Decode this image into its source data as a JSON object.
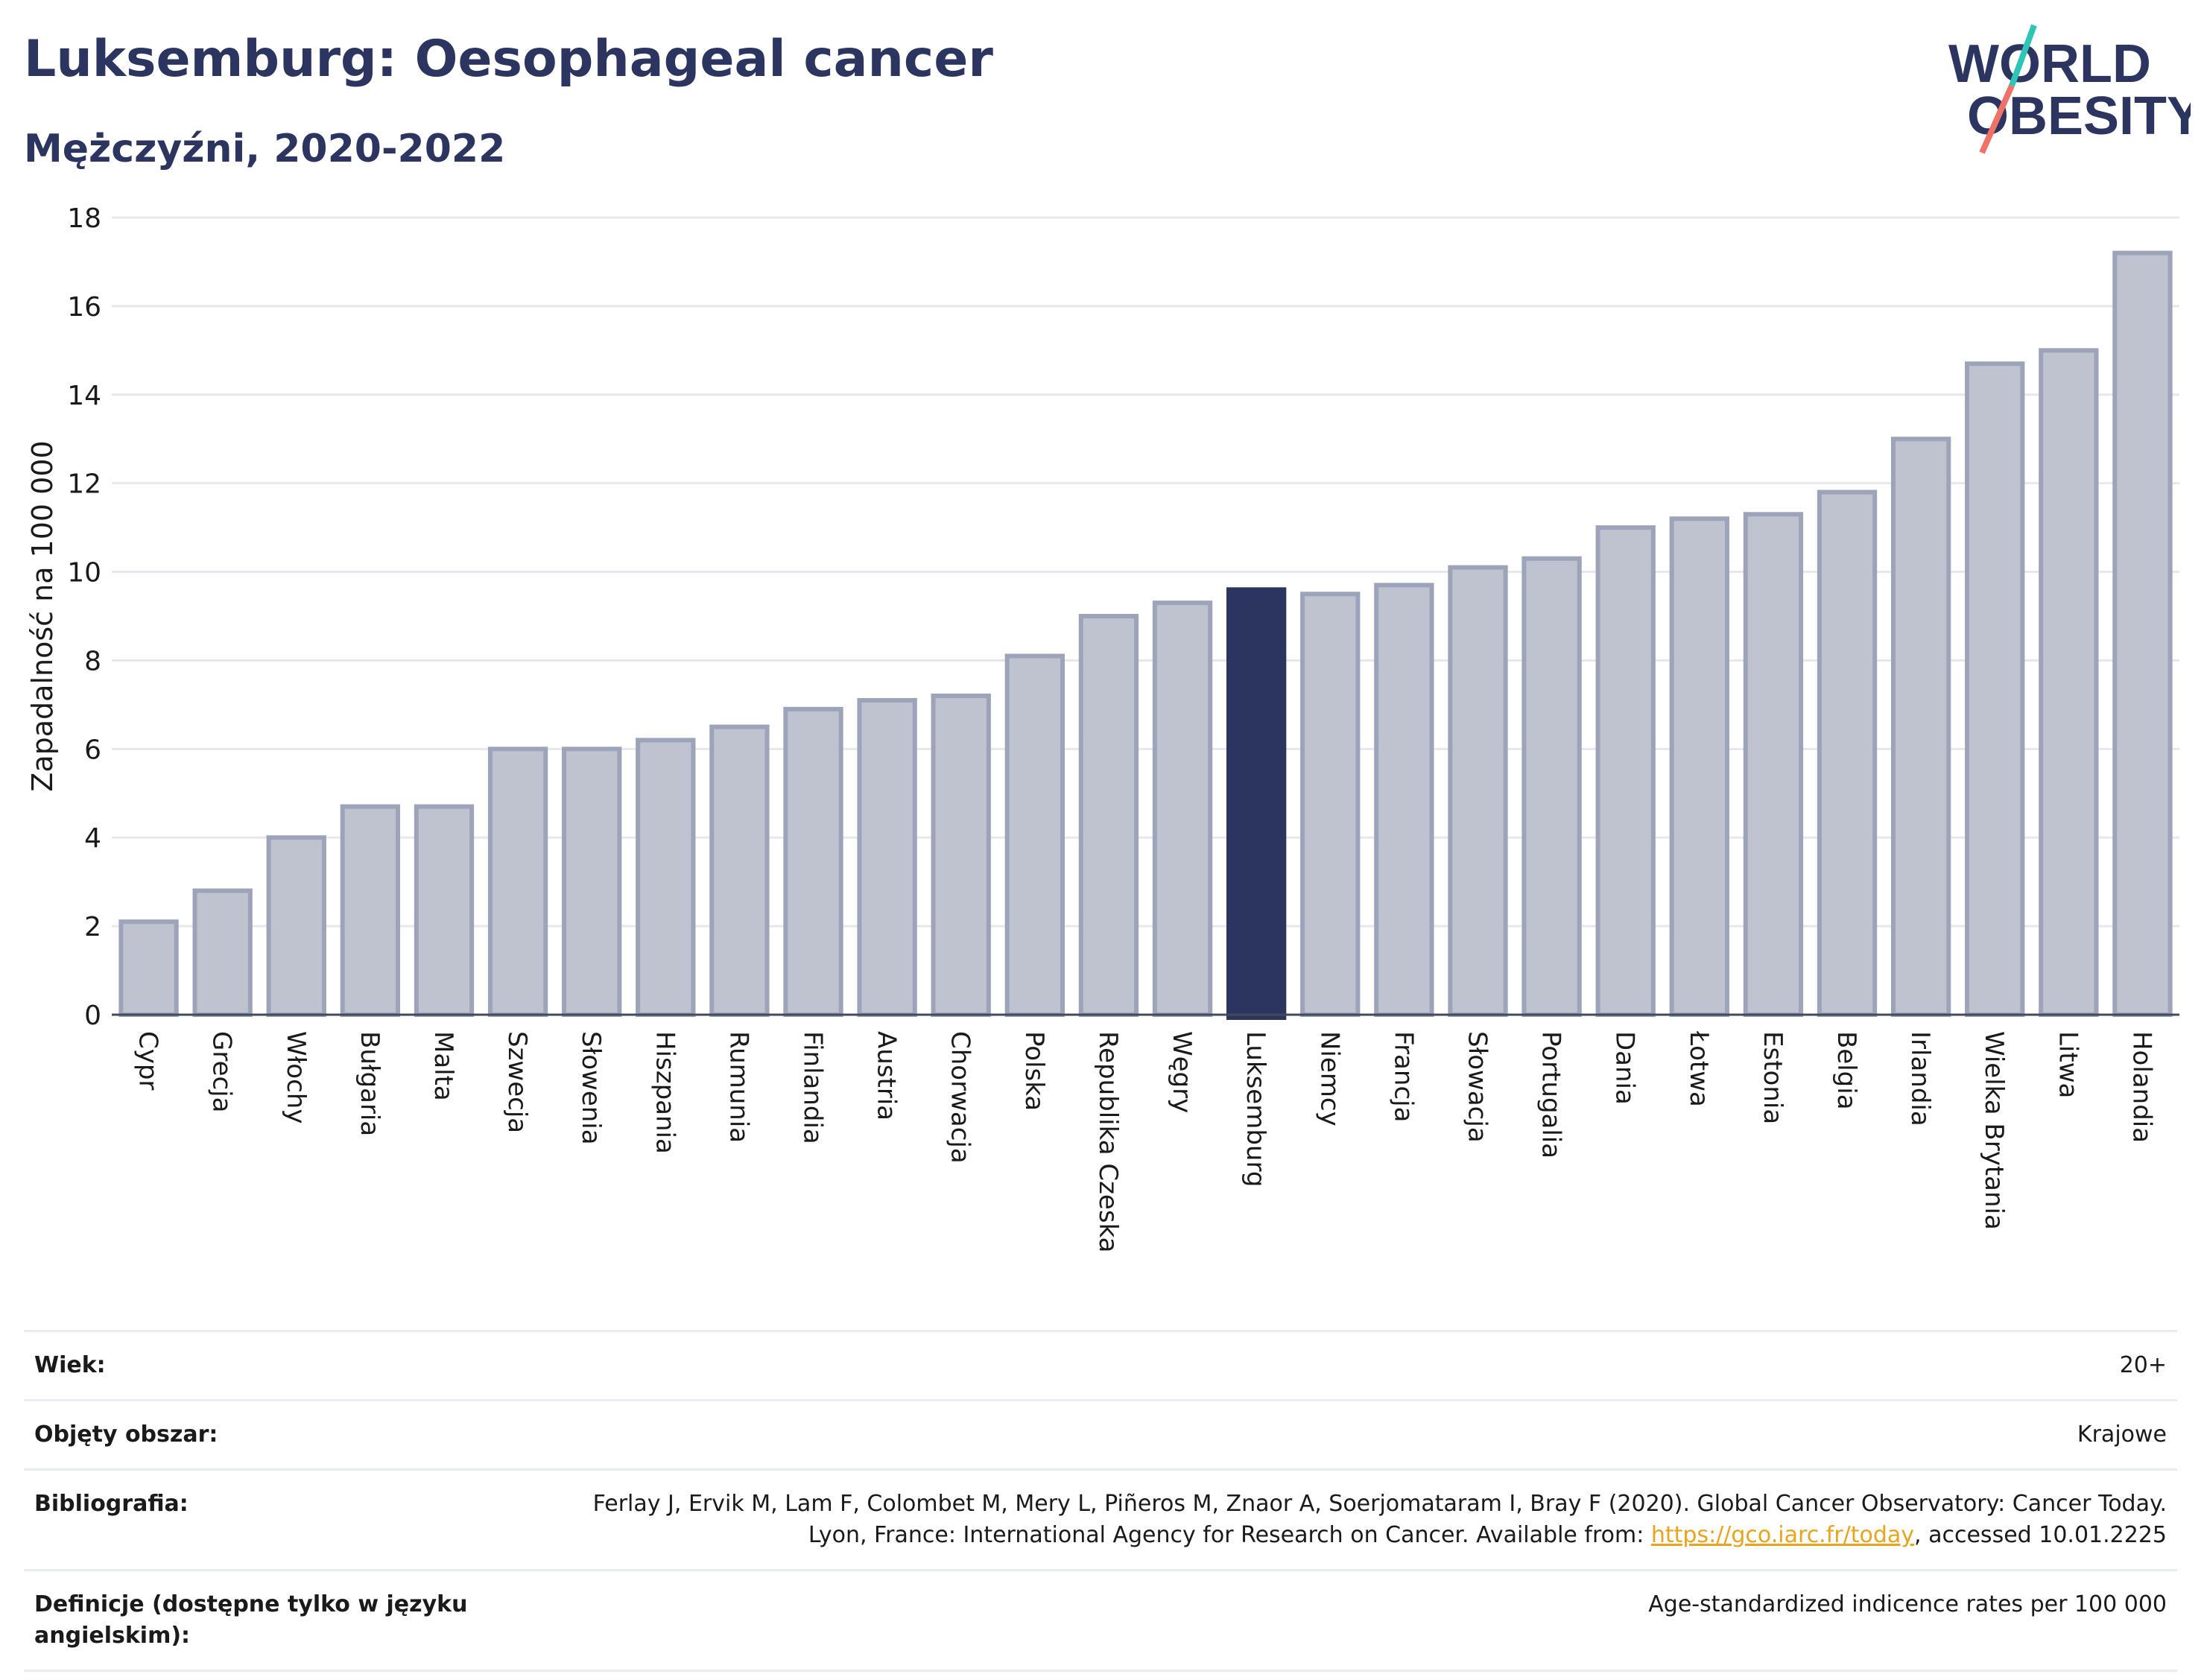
{
  "header": {
    "title": "Luksemburg: Oesophageal cancer",
    "subtitle": "Mężczyźni, 2020-2022",
    "logo_line1": "WORLD",
    "logo_line2": "OBESITY"
  },
  "colors": {
    "bar_fill": "#bfc3d0",
    "bar_stroke": "#9da3b9",
    "highlight": "#2b3560",
    "title": "#2b3560",
    "link": "#e8a41c",
    "logo_teal": "#2ec4b6",
    "logo_coral": "#f07167"
  },
  "chart_data": {
    "type": "bar",
    "ylabel": "Zapadalność na 100 000",
    "ylim": [
      0,
      18
    ],
    "yticks": [
      0,
      2,
      4,
      6,
      8,
      10,
      12,
      14,
      16,
      18
    ],
    "grid": true,
    "highlight": "Luksemburg",
    "categories": [
      "Cypr",
      "Grecja",
      "Włochy",
      "Bułgaria",
      "Malta",
      "Szwecja",
      "Słowenia",
      "Hiszpania",
      "Rumunia",
      "Finlandia",
      "Austria",
      "Chorwacja",
      "Polska",
      "Republika Czeska",
      "Węgry",
      "Luksemburg",
      "Niemcy",
      "Francja",
      "Słowacja",
      "Portugalia",
      "Dania",
      "Łotwa",
      "Estonia",
      "Belgia",
      "Irlandia",
      "Wielka Brytania",
      "Litwa",
      "Holandia"
    ],
    "values": [
      2.1,
      2.8,
      4.0,
      4.7,
      4.7,
      6.0,
      6.0,
      6.2,
      6.5,
      6.9,
      7.1,
      7.2,
      8.1,
      9.0,
      9.3,
      9.6,
      9.5,
      9.7,
      10.1,
      10.3,
      11.0,
      11.2,
      11.3,
      11.8,
      13.0,
      14.7,
      15.0,
      17.2
    ]
  },
  "meta": {
    "age_label": "Wiek:",
    "age_value": "20+",
    "area_label": "Objęty obszar:",
    "area_value": "Krajowe",
    "bib_label": "Bibliografia:",
    "bib_text_1": "Ferlay J, Ervik M, Lam F, Colombet M, Mery L, Piñeros M, Znaor A, Soerjomataram I, Bray F (2020). Global Cancer Observatory: Cancer Today. Lyon, France: International Agency for Research on Cancer. Available from: ",
    "bib_link": "https://gco.iarc.fr/today",
    "bib_text_2": ", accessed 10.01.2225",
    "def_label": "Definicje (dostępne tylko w języku angielskim):",
    "def_value": "Age-standardized indicence rates per 100 000"
  }
}
